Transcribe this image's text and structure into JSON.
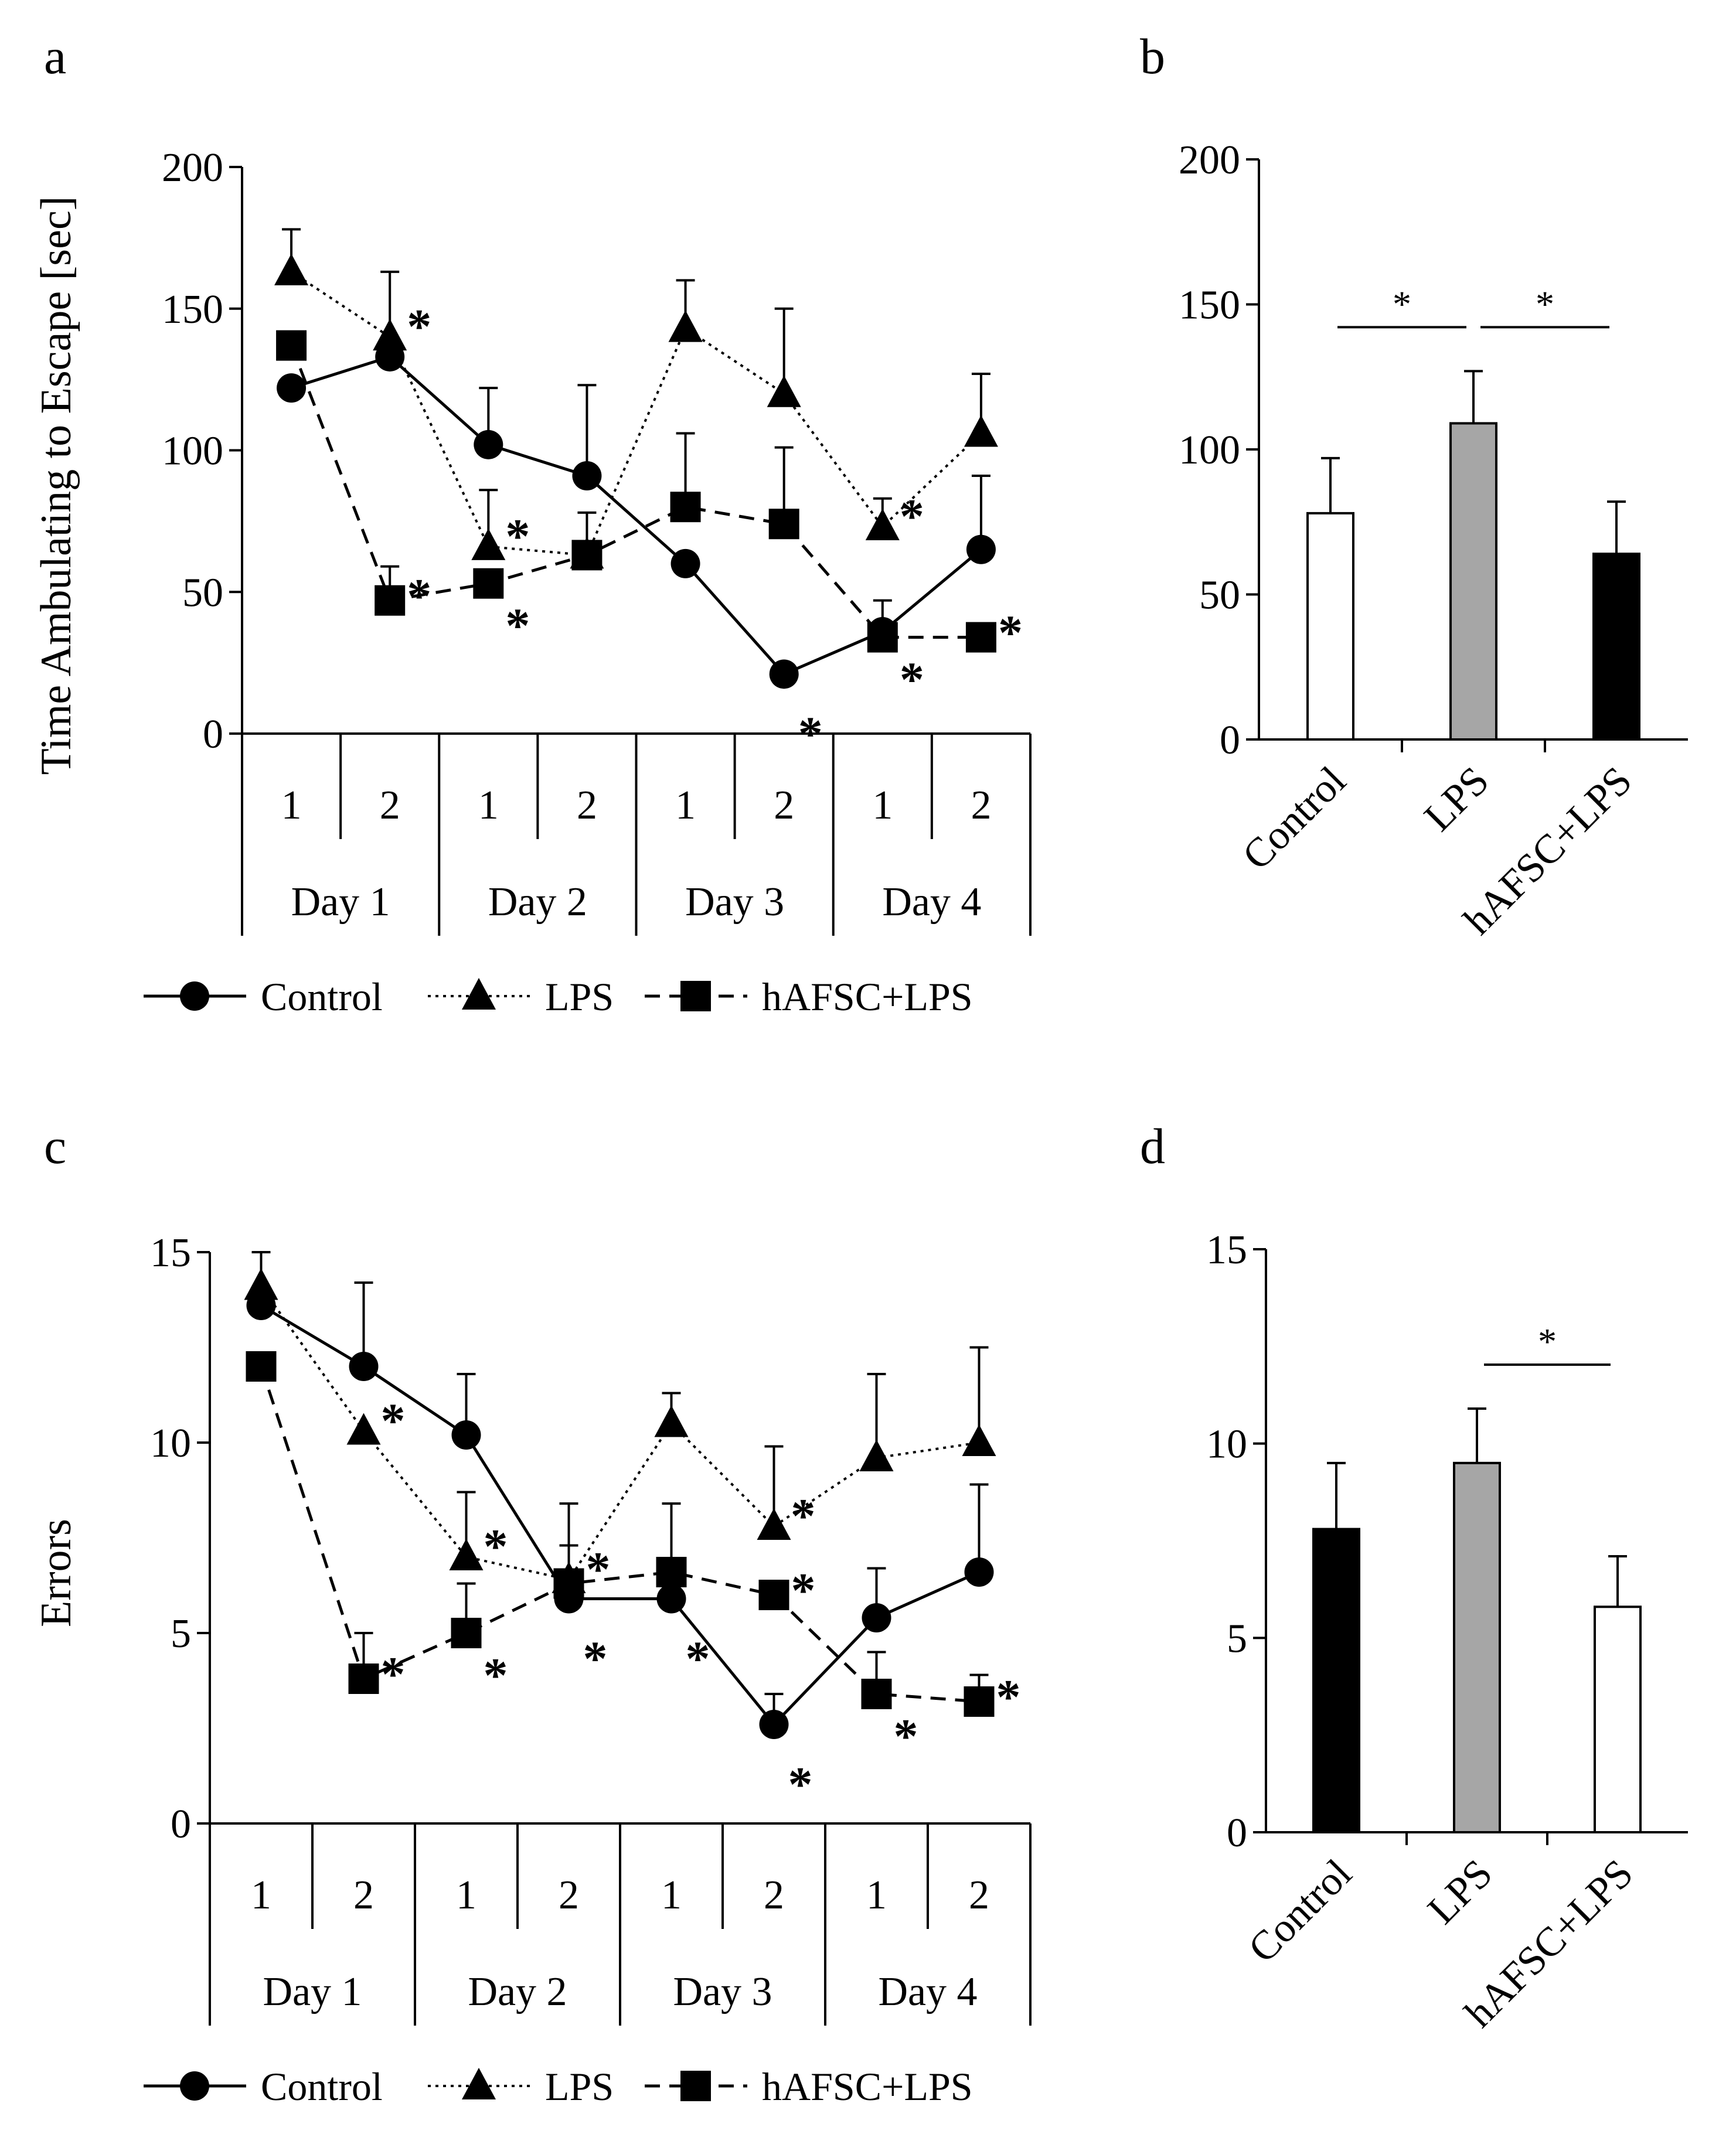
{
  "chart_data": [
    {
      "panel": "a",
      "type": "line",
      "ylabel": "Time Ambulating to Escape [sec]",
      "ylim": [
        0,
        200
      ],
      "yticks": [
        0,
        50,
        100,
        150,
        200
      ],
      "x_trials": [
        "1",
        "2",
        "1",
        "2",
        "1",
        "2",
        "1",
        "2"
      ],
      "x_days": [
        "Day 1",
        "Day 2",
        "Day 3",
        "Day 4"
      ],
      "series": [
        {
          "name": "Control",
          "marker": "circle",
          "line": "solid",
          "values": [
            122,
            133,
            102,
            91,
            60,
            21,
            36,
            65
          ],
          "err": [
            0,
            0,
            20,
            32,
            0,
            0,
            0,
            26
          ],
          "stars": [
            false,
            false,
            false,
            false,
            false,
            true,
            false,
            false
          ]
        },
        {
          "name": "LPS",
          "marker": "triangle",
          "line": "dotted",
          "values": [
            163,
            140,
            66,
            63,
            143,
            120,
            73,
            106
          ],
          "err": [
            15,
            23,
            20,
            15,
            17,
            30,
            10,
            21
          ],
          "stars": [
            false,
            true,
            true,
            false,
            false,
            false,
            true,
            false
          ]
        },
        {
          "name": "hAFSC+LPS",
          "marker": "square",
          "line": "dashed",
          "values": [
            137,
            47,
            53,
            63,
            80,
            74,
            34,
            34
          ],
          "err": [
            0,
            12,
            0,
            0,
            26,
            27,
            13,
            0
          ],
          "stars": [
            false,
            true,
            true,
            false,
            false,
            false,
            true,
            true
          ]
        }
      ],
      "star_symbol": "*",
      "legend": [
        "Control",
        "LPS",
        "hAFSC+LPS"
      ]
    },
    {
      "panel": "b",
      "type": "bar",
      "ylim": [
        0,
        200
      ],
      "yticks": [
        0,
        50,
        100,
        150,
        200
      ],
      "categories": [
        "Control",
        "LPS",
        "hAFSC+LPS"
      ],
      "values": [
        78,
        109,
        64
      ],
      "err": [
        19,
        18,
        18
      ],
      "colors": [
        "#ffffff",
        "#a6a6a6",
        "#000000"
      ],
      "significance": [
        {
          "from": 0,
          "to": 1,
          "label": "*"
        },
        {
          "from": 1,
          "to": 2,
          "label": "*"
        }
      ]
    },
    {
      "panel": "c",
      "type": "line",
      "ylabel": "Errors",
      "ylim": [
        0,
        15
      ],
      "yticks": [
        0,
        5,
        10,
        15
      ],
      "x_trials": [
        "1",
        "2",
        "1",
        "2",
        "1",
        "2",
        "1",
        "2"
      ],
      "x_days": [
        "Day 1",
        "Day 2",
        "Day 3",
        "Day 4"
      ],
      "series": [
        {
          "name": "Control",
          "marker": "circle",
          "line": "solid",
          "values": [
            13.6,
            12.0,
            10.2,
            5.9,
            5.9,
            2.6,
            5.4,
            6.6
          ],
          "err": [
            0,
            2.2,
            1.6,
            1.4,
            0,
            0.8,
            1.3,
            2.3
          ],
          "stars": [
            false,
            false,
            false,
            true,
            true,
            true,
            false,
            false
          ]
        },
        {
          "name": "LPS",
          "marker": "triangle",
          "line": "dotted",
          "values": [
            14.1,
            10.3,
            7.0,
            6.4,
            10.5,
            7.8,
            9.6,
            10.0
          ],
          "err": [
            0.9,
            0,
            1.7,
            2.0,
            0.8,
            2.1,
            2.2,
            2.5
          ],
          "stars": [
            false,
            true,
            true,
            true,
            false,
            true,
            false,
            false
          ]
        },
        {
          "name": "hAFSC+LPS",
          "marker": "square",
          "line": "dashed",
          "values": [
            12.0,
            3.8,
            5.0,
            6.3,
            6.6,
            6.0,
            3.4,
            3.2
          ],
          "err": [
            0,
            1.2,
            1.3,
            0,
            1.8,
            0,
            1.1,
            0.7
          ],
          "stars": [
            false,
            true,
            true,
            false,
            false,
            true,
            true,
            true
          ]
        }
      ],
      "star_symbol": "*",
      "legend": [
        "Control",
        "LPS",
        "hAFSC+LPS"
      ]
    },
    {
      "panel": "d",
      "type": "bar",
      "ylim": [
        0,
        15
      ],
      "yticks": [
        0,
        5,
        10,
        15
      ],
      "categories": [
        "Control",
        "LPS",
        "hAFSC+LPS"
      ],
      "values": [
        7.8,
        9.5,
        5.8
      ],
      "err": [
        1.7,
        1.4,
        1.3
      ],
      "colors": [
        "#000000",
        "#a6a6a6",
        "#ffffff"
      ],
      "significance": [
        {
          "from": 1,
          "to": 2,
          "label": "*"
        }
      ]
    }
  ]
}
